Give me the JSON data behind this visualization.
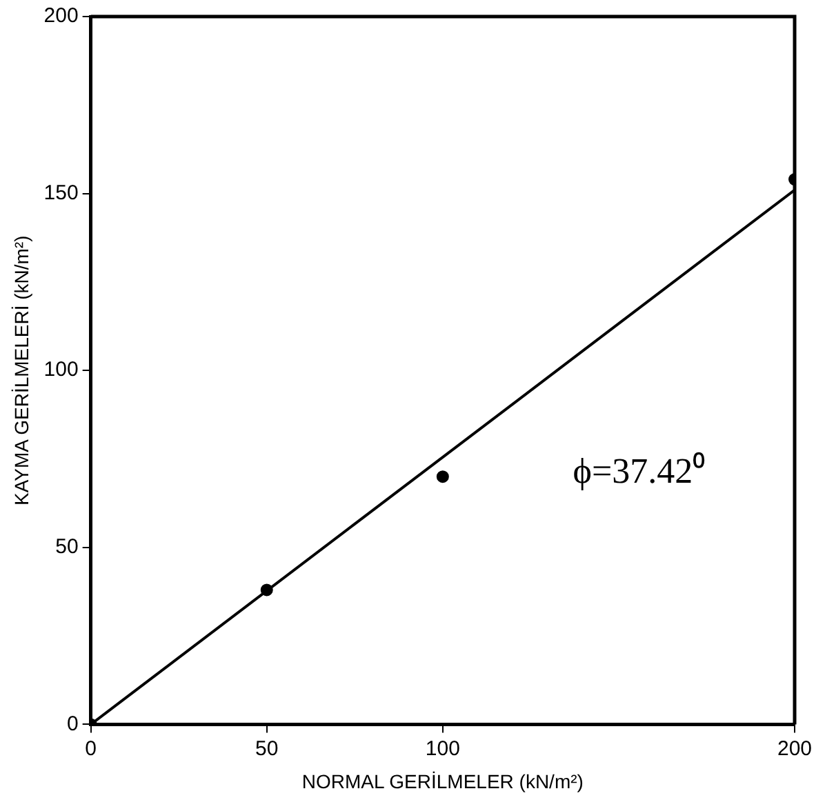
{
  "chart_data": {
    "type": "scatter",
    "xlabel": "NORMAL GERİLMELER (kN/m²)",
    "ylabel": "KAYMA GERİLMELERİ (kN/m²)",
    "annotations": [
      "ϕ=37.42⁰"
    ],
    "series": [
      {
        "type": "scatter",
        "color": "#000000",
        "marker": "circle",
        "x": [
          0,
          50,
          100,
          200
        ],
        "values": [
          0,
          38,
          70,
          154
        ]
      },
      {
        "type": "line",
        "color": "#000000",
        "marker": "none",
        "line_style": "solid",
        "x": [
          0,
          200
        ],
        "values": [
          0,
          151
        ]
      }
    ],
    "xlim": [
      0,
      200
    ],
    "xticks": [
      0,
      50,
      100,
      200
    ],
    "ylim": [
      0,
      200
    ],
    "yticks": [
      0,
      50,
      100,
      150,
      200
    ],
    "grid": false,
    "legend": false
  }
}
